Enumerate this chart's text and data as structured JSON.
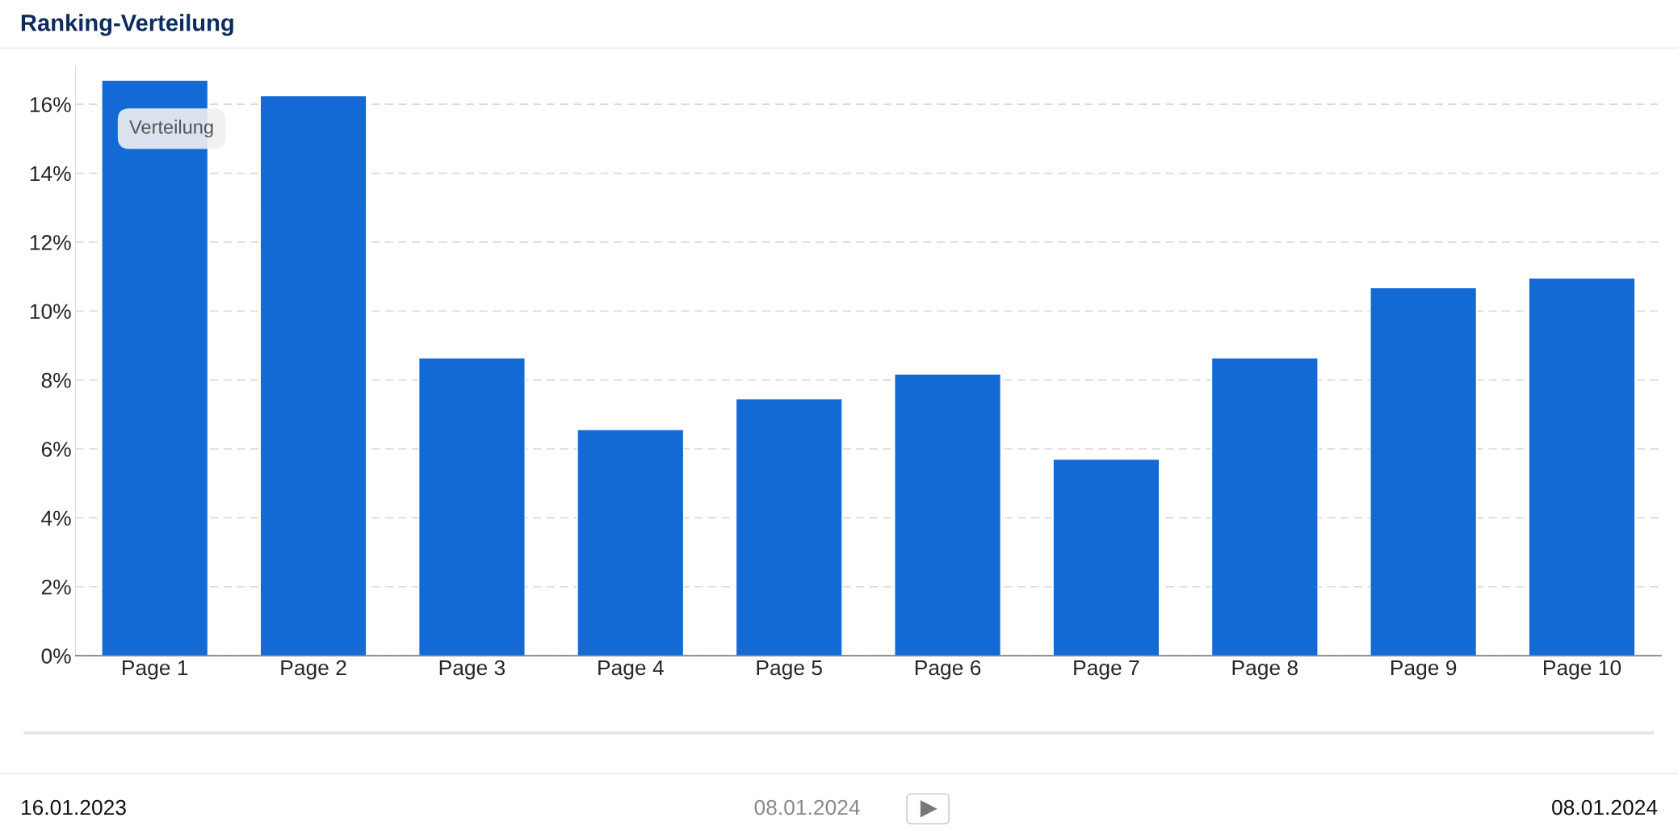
{
  "chart_data": {
    "type": "bar",
    "title": "Ranking-Verteilung",
    "categories": [
      "Page 1",
      "Page 2",
      "Page 3",
      "Page 4",
      "Page 5",
      "Page 6",
      "Page 7",
      "Page 8",
      "Page 9",
      "Page 10"
    ],
    "series": [
      {
        "color": "#136ad5",
        "values": [
          16.7,
          16.25,
          8.64,
          6.56,
          7.46,
          8.17,
          5.7,
          8.64,
          10.68,
          10.96
        ]
      }
    ],
    "ylim": [
      0,
      17.1
    ],
    "yticks": [
      {
        "value": 0,
        "label": "0%"
      },
      {
        "value": 2,
        "label": "2%"
      },
      {
        "value": 4,
        "label": "4%"
      },
      {
        "value": 6,
        "label": "6%"
      },
      {
        "value": 8,
        "label": "8%"
      },
      {
        "value": 10,
        "label": "10%"
      },
      {
        "value": 12,
        "label": "12%"
      },
      {
        "value": 14,
        "label": "14%"
      },
      {
        "value": 16,
        "label": "16%"
      }
    ],
    "grid": "y",
    "annotations": [
      "Verteilung",
      "16.01.2023",
      "08.01.2024",
      "08.01.2024"
    ]
  }
}
